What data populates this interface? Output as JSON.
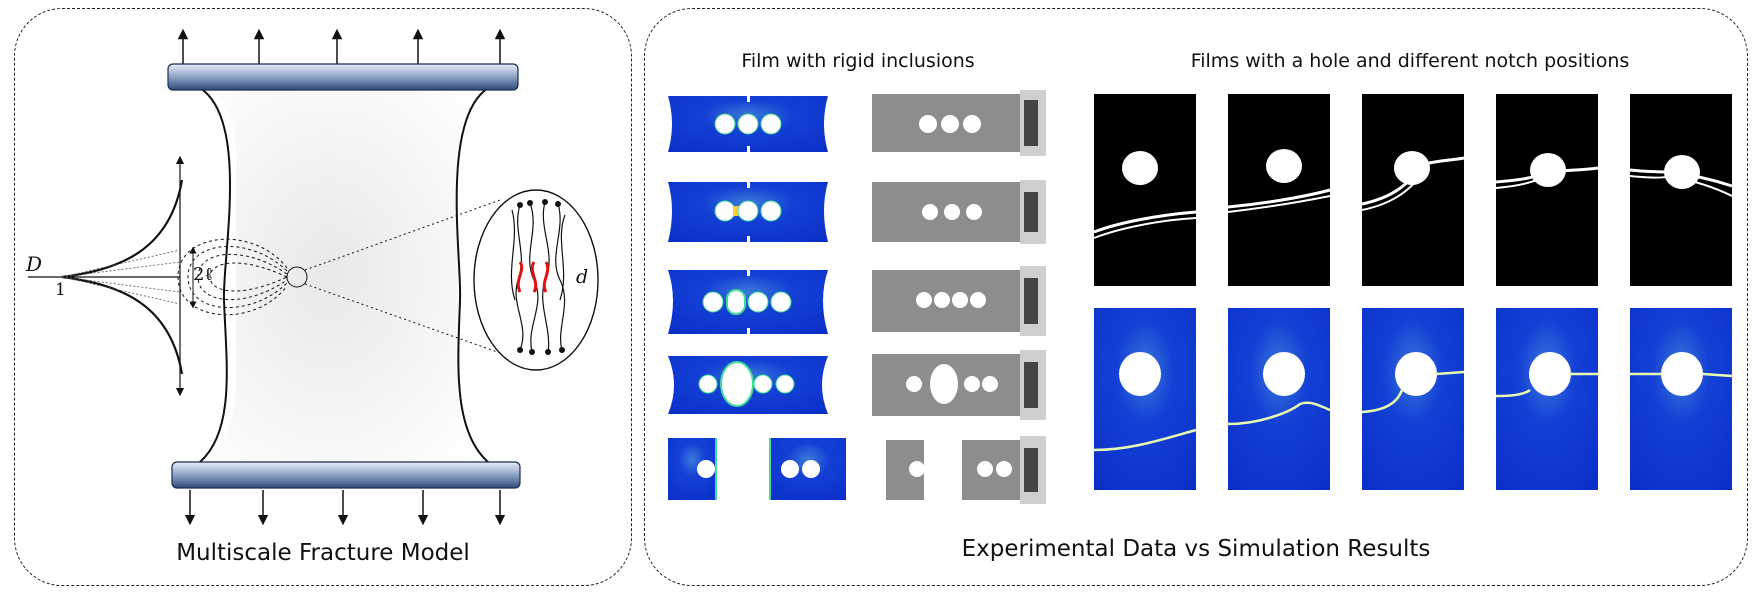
{
  "left": {
    "caption": "Multiscale Fracture Model",
    "labels": {
      "damage": "D",
      "one": "1",
      "length": "2ℓ",
      "d": "d"
    }
  },
  "right": {
    "caption": "Experimental Data vs Simulation Results",
    "subtitle_inclusions": "Film with rigid inclusions",
    "subtitle_holes": "Films with a hole and different notch positions"
  },
  "colors": {
    "clamp": "#2e4a7a",
    "sim_blue": "#0a2fd0",
    "crack_red": "#e01010",
    "crack_green": "#3fdc9a"
  }
}
